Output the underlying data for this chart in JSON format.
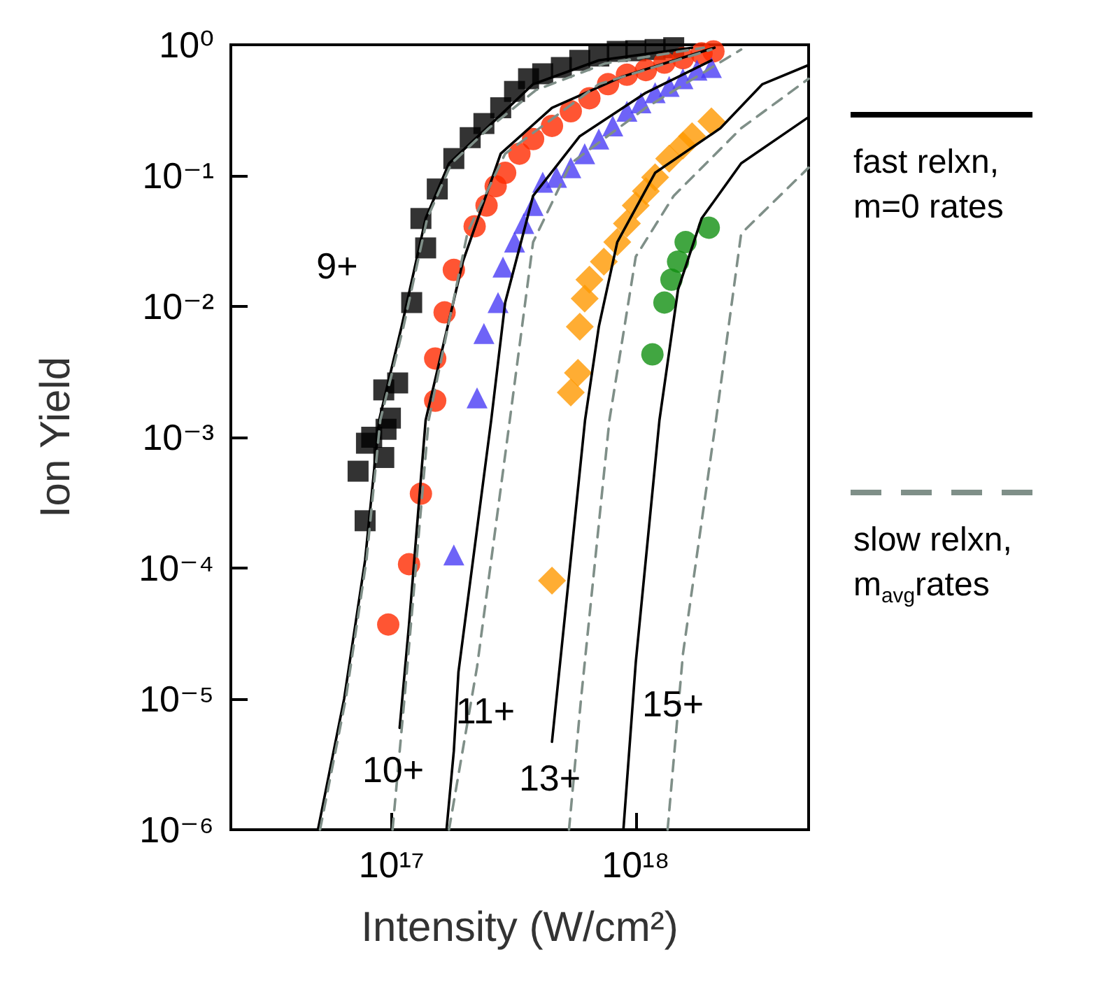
{
  "chart_data": {
    "type": "scatter",
    "xlabel": "Intensity (W/cm²)",
    "ylabel": "Ion Yield",
    "log": "xy",
    "grid": false,
    "legend": "right",
    "xlim": [
      2.2e+16,
      5.1e+18
    ],
    "ylim": [
      1e-06,
      1
    ],
    "xticks": [
      {
        "value": 1e+17,
        "label": "10¹⁷"
      },
      {
        "value": 1e+18,
        "label": "10¹⁸"
      }
    ],
    "yticks": [
      {
        "value": 1e-06,
        "label": "10⁻⁶"
      },
      {
        "value": 1e-05,
        "label": "10⁻⁵"
      },
      {
        "value": 0.0001,
        "label": "10⁻⁴"
      },
      {
        "value": 0.001,
        "label": "10⁻³"
      },
      {
        "value": 0.01,
        "label": "10⁻²"
      },
      {
        "value": 0.1,
        "label": "10⁻¹"
      },
      {
        "value": 1,
        "label": "10⁰"
      }
    ],
    "annotations": [
      "9+",
      "10+",
      "11+",
      "13+",
      "15+"
    ],
    "series": [
      {
        "type": "line",
        "name": "fast relxn, m=0 rates",
        "color": "#000000",
        "line_style": "solid",
        "marker": "none",
        "x": [
          5e+16,
          6.4e+16,
          7.8e+16,
          8.9e+16,
          1.1e+17,
          1.38e+17,
          1.72e+17,
          2.45e+17,
          3.8e+17,
          7.06e+17,
          1.7e+18
        ],
        "values": [
          1e-06,
          1e-05,
          0.000115,
          0.00135,
          0.007,
          0.047,
          0.124,
          0.23,
          0.5,
          0.76,
          0.95
        ]
      },
      {
        "type": "line",
        "color": "#000000",
        "line_style": "solid",
        "marker": "none",
        "x": [
          1.08e+17,
          1.18e+17,
          1.38e+17,
          1.96e+17,
          2.8e+17,
          4.54e+17,
          8.8e+17,
          2.1e+18
        ],
        "values": [
          6e-06,
          3.7e-05,
          0.00135,
          0.022,
          0.147,
          0.33,
          0.57,
          0.95
        ]
      },
      {
        "type": "line",
        "color": "#000000",
        "line_style": "solid",
        "marker": "none",
        "x": [
          1.68e+17,
          1.8e+17,
          1.88e+17,
          2.56e+17,
          2.92e+17,
          3.8e+17,
          5.9e+17,
          1.1e+18,
          2.04e+18
        ],
        "values": [
          1e-06,
          4e-06,
          1.6e-05,
          0.00135,
          0.0107,
          0.07,
          0.2,
          0.43,
          0.76
        ]
      },
      {
        "type": "line",
        "color": "#000000",
        "line_style": "solid",
        "marker": "none",
        "x": [
          4.54e+17,
          6.2e+17,
          7.06e+17,
          8.4e+17,
          1.2e+18,
          2.22e+18,
          3.3e+18,
          5.1e+18
        ],
        "values": [
          4.7e-06,
          0.00135,
          0.007,
          0.031,
          0.105,
          0.23,
          0.5,
          0.7
        ]
      },
      {
        "type": "line",
        "color": "#000000",
        "line_style": "solid",
        "marker": "none",
        "x": [
          8.9e+17,
          1e+18,
          1.25e+18,
          1.49e+18,
          1.86e+18,
          2.7e+18,
          5.1e+18
        ],
        "values": [
          1e-06,
          1.9e-05,
          0.00135,
          0.0135,
          0.047,
          0.124,
          0.28
        ]
      },
      {
        "type": "line",
        "name": "slow relxn, m$_{avg}$rates",
        "color": "#7f8f88",
        "line_style": "dashed",
        "marker": "none",
        "x": [
          5.1e+16,
          6.5e+16,
          7.9e+16,
          9e+16,
          1.12e+17,
          1.4e+17,
          1.76e+17,
          2.5e+17,
          3.9e+17,
          7.5e+17,
          1.9e+18
        ],
        "values": [
          1e-06,
          1e-05,
          0.000115,
          0.00135,
          0.007,
          0.047,
          0.124,
          0.23,
          0.45,
          0.72,
          0.95
        ]
      },
      {
        "type": "line",
        "color": "#7f8f88",
        "line_style": "dashed",
        "marker": "none",
        "x": [
          1.01e+17,
          1.13e+17,
          1.42e+17,
          2.05e+17,
          2.92e+17,
          7.06e+17,
          2.04e+18
        ],
        "values": [
          1e-06,
          1e-05,
          0.00135,
          0.037,
          0.147,
          0.5,
          0.92
        ]
      },
      {
        "type": "line",
        "color": "#7f8f88",
        "line_style": "dashed",
        "marker": "none",
        "x": [
          1.72e+17,
          2.24e+17,
          3.05e+17,
          3.8e+17,
          5.42e+17,
          1.1e+18,
          2.7e+18
        ],
        "values": [
          1e-06,
          1.75e-05,
          0.00135,
          0.031,
          0.124,
          0.33,
          0.92
        ]
      },
      {
        "type": "line",
        "color": "#7f8f88",
        "line_style": "dashed",
        "marker": "none",
        "x": [
          5.33e+17,
          5.97e+17,
          7.8e+17,
          1e+18,
          1.43e+18,
          2.7e+18,
          5.1e+18
        ],
        "values": [
          1e-06,
          1e-05,
          0.00135,
          0.024,
          0.07,
          0.23,
          0.55
        ]
      },
      {
        "type": "line",
        "color": "#7f8f88",
        "line_style": "dashed",
        "marker": "none",
        "x": [
          1.35e+18,
          1.56e+18,
          2.13e+18,
          2.7e+18,
          5.1e+18
        ],
        "values": [
          1e-06,
          2.2e-05,
          0.00135,
          0.036,
          0.115
        ]
      },
      {
        "color": "#000000",
        "marker": "square",
        "x": [
          7.8e+16,
          7.3e+16,
          9.3e+16,
          7.9e+16,
          8.3e+16,
          9.5e+16,
          9.9e+16,
          9.3e+16,
          1.06e+17,
          1.21e+17,
          1.38e+17,
          1.32e+17,
          1.54e+17,
          1.8e+17,
          2.1e+17,
          2.39e+17,
          2.8e+17,
          3.19e+17,
          3.64e+17,
          4.16e+17,
          4.96e+17,
          5.9e+17,
          7.06e+17,
          8.4e+17,
          1e+18,
          1.2e+18,
          1.43e+18
        ],
        "values": [
          0.00023,
          0.00055,
          0.0007,
          0.0009,
          0.001,
          0.00115,
          0.0014,
          0.0023,
          0.0026,
          0.0107,
          0.028,
          0.047,
          0.079,
          0.135,
          0.195,
          0.25,
          0.33,
          0.44,
          0.55,
          0.6,
          0.67,
          0.76,
          0.82,
          0.89,
          0.9,
          0.92,
          0.95
        ]
      },
      {
        "color": "#ff2a00",
        "marker": "circle",
        "x": [
          9.7e+16,
          1.18e+17,
          1.32e+17,
          1.51e+17,
          1.51e+17,
          1.65e+17,
          1.8e+17,
          2.19e+17,
          2.45e+17,
          2.67e+17,
          2.92e+17,
          3.34e+17,
          3.8e+17,
          4.54e+17,
          5.42e+17,
          6.46e+17,
          7.7e+17,
          9.2e+17,
          1.1e+18,
          1.31e+18,
          1.56e+18,
          1.86e+18,
          2.08e+18
        ],
        "values": [
          3.7e-05,
          0.000107,
          0.00037,
          0.0019,
          0.004,
          0.009,
          0.019,
          0.041,
          0.059,
          0.083,
          0.105,
          0.147,
          0.19,
          0.24,
          0.31,
          0.39,
          0.5,
          0.59,
          0.64,
          0.73,
          0.79,
          0.86,
          0.89
        ]
      },
      {
        "color": "#4a3cf5",
        "marker": "triangle",
        "x": [
          1.8e+17,
          2.24e+17,
          2.39e+17,
          2.73e+17,
          2.86e+17,
          3.19e+17,
          3.48e+17,
          3.8e+17,
          4.16e+17,
          4.74e+17,
          5.42e+17,
          6.18e+17,
          7.06e+17,
          8.05e+17,
          9.2e+17,
          1.05e+18,
          1.2e+18,
          1.37e+18,
          1.56e+18,
          1.78e+18,
          2.04e+18
        ],
        "values": [
          0.000126,
          0.002,
          0.0062,
          0.0107,
          0.02,
          0.031,
          0.043,
          0.059,
          0.089,
          0.097,
          0.115,
          0.147,
          0.19,
          0.24,
          0.31,
          0.36,
          0.43,
          0.48,
          0.55,
          0.64,
          0.67
        ]
      },
      {
        "color": "#ff9900",
        "marker": "diamond",
        "x": [
          4.54e+17,
          5.42e+17,
          5.8e+17,
          5.9e+17,
          6.18e+17,
          6.46e+17,
          7.4e+17,
          8.4e+17,
          9.2e+17,
          1e+18,
          1.1e+18,
          1.2e+18,
          1.37e+18,
          1.56e+18,
          1.7e+18,
          2.04e+18
        ],
        "values": [
          8e-05,
          0.0022,
          0.0031,
          0.007,
          0.0115,
          0.016,
          0.022,
          0.031,
          0.043,
          0.059,
          0.076,
          0.097,
          0.135,
          0.17,
          0.2,
          0.26
        ]
      },
      {
        "color": "#119011",
        "marker": "circle",
        "x": [
          1.17e+18,
          1.31e+18,
          1.4e+18,
          1.49e+18,
          1.6e+18,
          1.99e+18
        ],
        "values": [
          0.0043,
          0.0107,
          0.016,
          0.022,
          0.031,
          0.04
        ]
      }
    ]
  }
}
